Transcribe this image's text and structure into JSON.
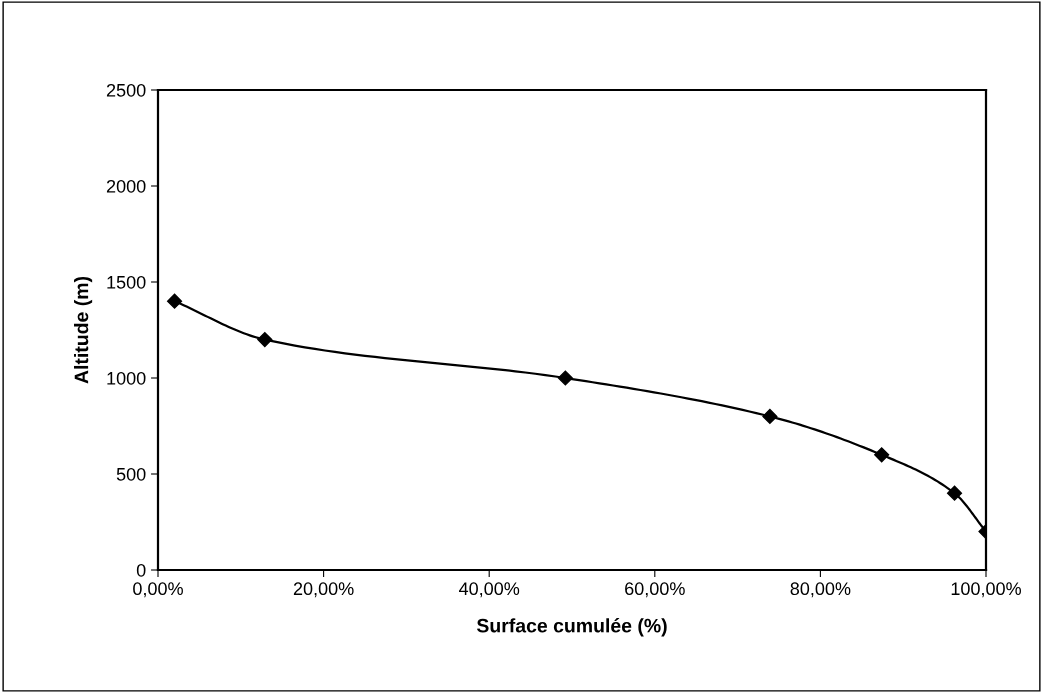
{
  "chart_data": {
    "type": "line",
    "xlabel": "Surface cumulée (%)",
    "ylabel": "Altitude (m)",
    "x": [
      2.0,
      12.9,
      49.2,
      73.9,
      87.4,
      96.2,
      100
    ],
    "series": [
      {
        "color": "#000000",
        "values": [
          1400,
          1200,
          1000,
          800,
          600,
          400,
          200
        ]
      }
    ],
    "xlim": [
      0,
      100
    ],
    "xticks": [
      {
        "value": 0,
        "label": "0,00%"
      },
      {
        "value": 20,
        "label": "20,00%"
      },
      {
        "value": 40,
        "label": "40,00%"
      },
      {
        "value": 60,
        "label": "60,00%"
      },
      {
        "value": 80,
        "label": "80,00%"
      },
      {
        "value": 100,
        "label": "100,00%"
      }
    ],
    "ylim": [
      0,
      2500
    ],
    "yticks": [
      0,
      500,
      1000,
      1500,
      2000,
      2500
    ],
    "grid": false,
    "legend": false,
    "marker": "diamond",
    "line_style": "solid"
  }
}
